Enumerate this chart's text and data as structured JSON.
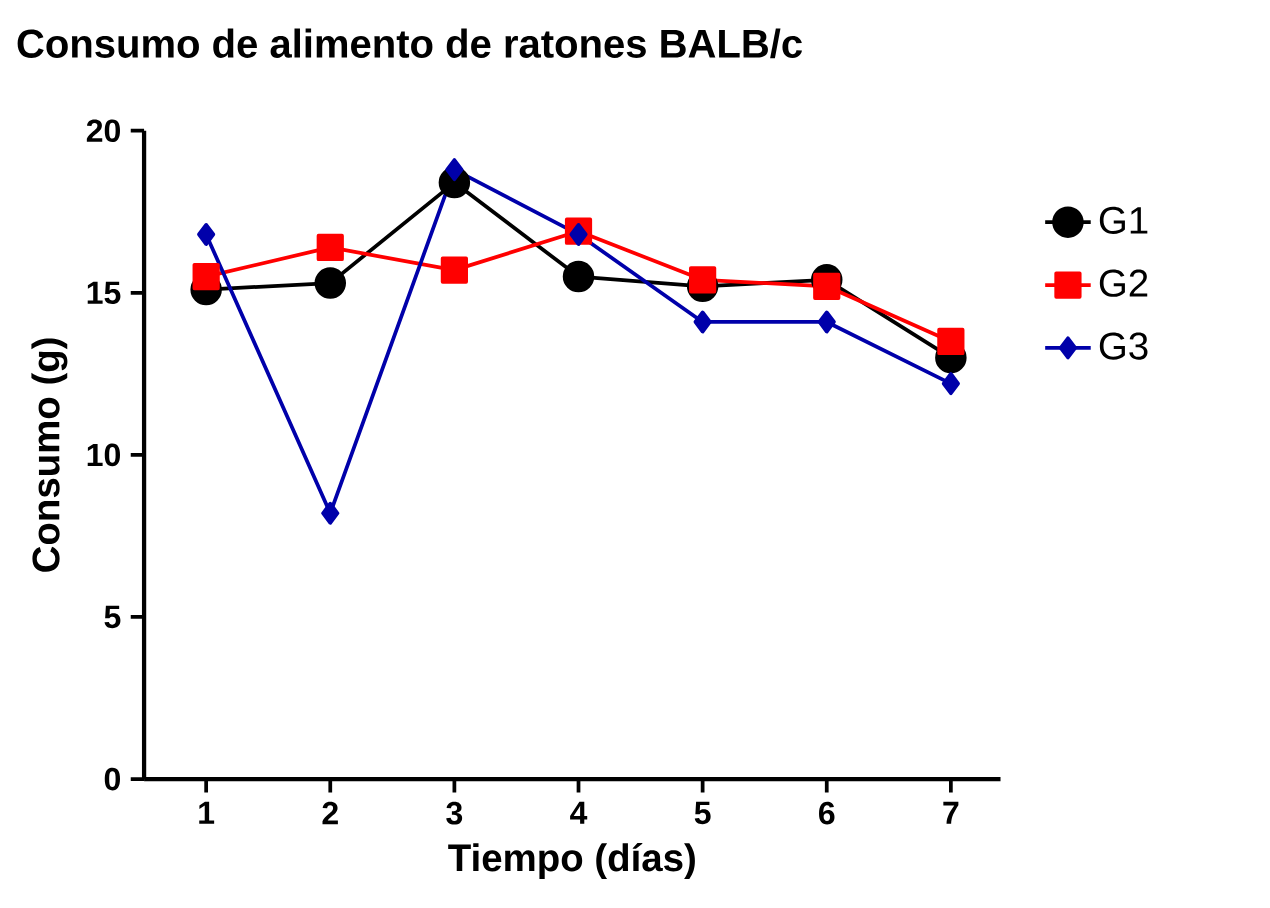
{
  "chart_data": {
    "type": "line",
    "title": "Consumo de alimento de ratones BALB/c",
    "xlabel": "Tiempo (días)",
    "ylabel": "Consumo (g)",
    "x": [
      1,
      2,
      3,
      4,
      5,
      6,
      7
    ],
    "xlim": [
      0.5,
      7.4
    ],
    "xticks": [
      1,
      2,
      3,
      4,
      5,
      6,
      7
    ],
    "ylim": [
      0,
      20
    ],
    "yticks": [
      0,
      5,
      10,
      15,
      20
    ],
    "grid": false,
    "legend": "right",
    "series": [
      {
        "name": "G1",
        "color": "#000000",
        "marker": "circle",
        "values": [
          15.1,
          15.3,
          18.4,
          15.5,
          15.2,
          15.4,
          13.0
        ]
      },
      {
        "name": "G2",
        "color": "#ff0000",
        "marker": "square",
        "values": [
          15.5,
          16.4,
          15.7,
          16.9,
          15.4,
          15.2,
          13.5
        ]
      },
      {
        "name": "G3",
        "color": "#0000aa",
        "marker": "diamond",
        "values": [
          16.8,
          8.2,
          18.8,
          16.8,
          14.1,
          14.1,
          12.2
        ]
      }
    ]
  }
}
